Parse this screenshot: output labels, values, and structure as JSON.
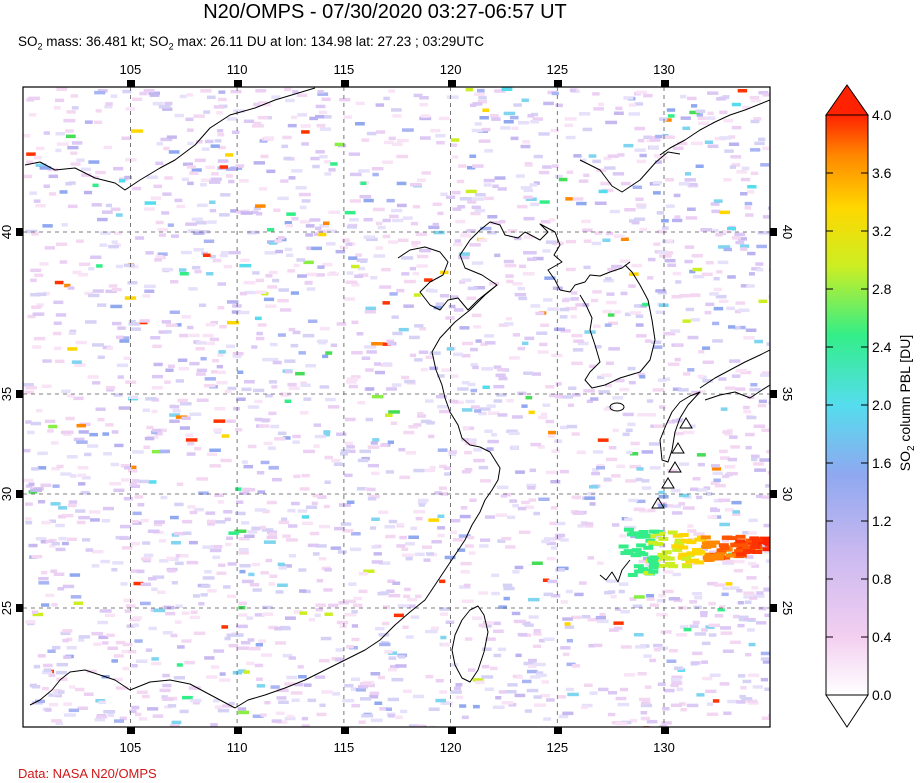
{
  "header": {
    "title": "N20/OMPS - 07/30/2020 03:27-06:57 UT",
    "subtitle_parts": [
      "SO",
      "2",
      " mass: 36.481 kt; SO",
      "2",
      " max: 26.11 DU at lon: 134.98 lat: 27.23 ; 03:29UTC"
    ]
  },
  "map": {
    "lon_range": [
      100,
      135
    ],
    "lat_range": [
      20,
      45
    ],
    "lon_ticks": [
      "105",
      "110",
      "115",
      "120",
      "125",
      "130"
    ],
    "lat_ticks": [
      "40",
      "35",
      "30",
      "25"
    ],
    "max_location": {
      "lon": 134.98,
      "lat": 27.23
    }
  },
  "colorbar": {
    "label_main": "SO",
    "label_sub": "2",
    "label_rest": " column PBL [DU]",
    "ticks": [
      "4.0",
      "3.6",
      "3.2",
      "2.8",
      "2.4",
      "2.0",
      "1.6",
      "1.2",
      "0.8",
      "0.4",
      "0.0"
    ],
    "colors": [
      "#ffffff",
      "#f3cff0",
      "#c8b8f0",
      "#8fa8f0",
      "#55ddee",
      "#33ee88",
      "#ccee22",
      "#ffd700",
      "#ff8800",
      "#ff2200"
    ]
  },
  "credit": "Data: NASA N20/OMPS"
}
